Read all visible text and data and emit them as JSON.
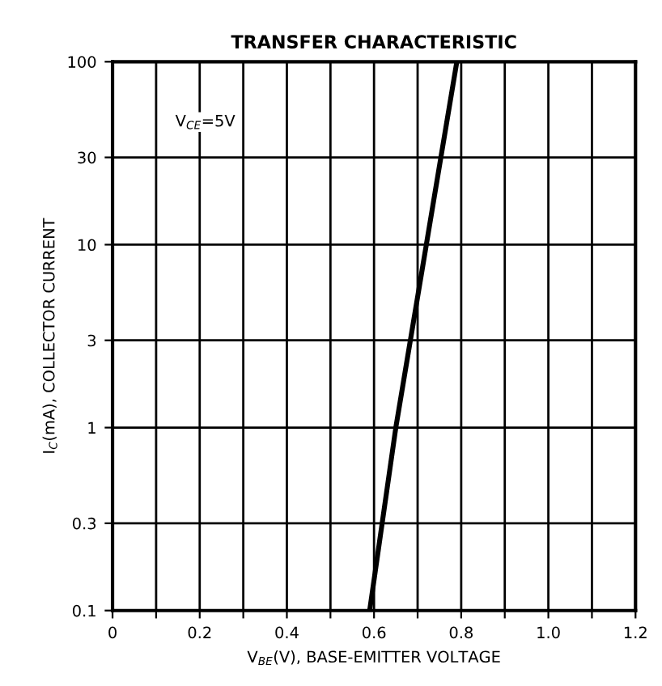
{
  "chart_data": {
    "type": "line",
    "title": "TRANSFER CHARACTERISTIC",
    "xlabel": "V$_{BE}$(V), BASE-EMITTER VOLTAGE",
    "ylabel": "I$_{C}$(mA), COLLECTOR CURRENT",
    "series": [
      {
        "color": "#000000",
        "x": [
          0.59,
          0.65,
          0.72,
          0.79
        ],
        "values": [
          0.1,
          1,
          10,
          100
        ]
      }
    ],
    "log": "y",
    "xlim": [
      0,
      1.2
    ],
    "ylim": [
      0.1,
      100
    ],
    "xticks": [
      0,
      {
        "value": 0.1,
        "label": null
      },
      0.2,
      {
        "value": 0.3,
        "label": null
      },
      0.4,
      {
        "value": 0.5,
        "label": null
      },
      0.6,
      {
        "value": 0.7,
        "label": null
      },
      0.8,
      {
        "value": 0.9,
        "label": null
      },
      {
        "value": 1.0,
        "label": "1.0"
      },
      {
        "value": 1.1,
        "label": null
      },
      1.2
    ],
    "yticks": [
      0.1,
      0.3,
      1,
      3,
      10,
      30,
      100
    ],
    "grid": true,
    "marker": "none",
    "line_style": "solid",
    "annotations": [
      "V$_{CE}$=5V"
    ]
  }
}
